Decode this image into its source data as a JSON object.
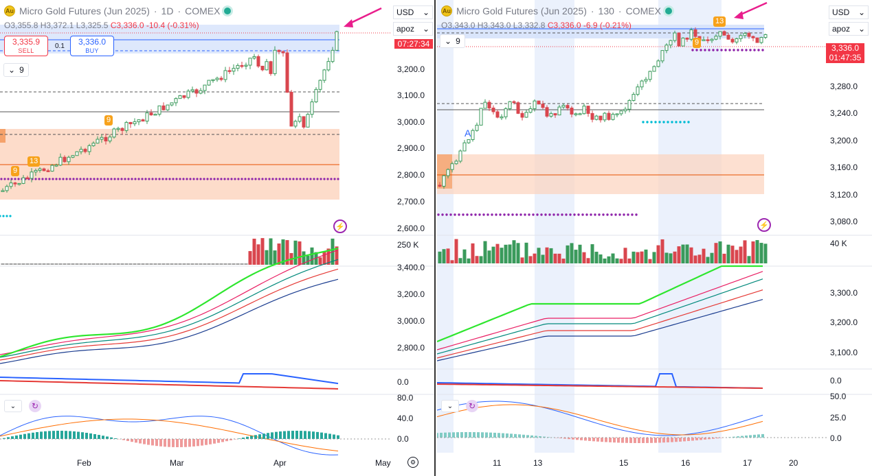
{
  "left": {
    "title": "Micro Gold Futures (Jun 2025)",
    "interval": "1D",
    "exchange": "COMEX",
    "ohlc": {
      "o": "O3,355.8",
      "h": "H3,372.1",
      "l": "L3,325.5",
      "c": "C3,336.0",
      "chg": "-10.4 (-0.31%)"
    },
    "sell_price": "3,335.9",
    "sell_label": "SELL",
    "buy_price": "3,336.0",
    "buy_label": "BUY",
    "spread": "0.1",
    "indicator_count": "9",
    "symbol_dd": "USD",
    "style_dd": "apoz",
    "countdown": "07:27:34",
    "price_axis": [
      "3,200.0",
      "3,100.0",
      "3,000.0",
      "2,900.0",
      "2,800.0",
      "2,700.0",
      "2,600.0"
    ],
    "volume_axis": [
      "250 K"
    ],
    "ma_axis": [
      "3,400.0",
      "3,200.0",
      "3,000.0",
      "2,800.0"
    ],
    "osc_axis": [
      "0.0"
    ],
    "macd_axis": [
      "80.0",
      "40.0",
      "0.0"
    ],
    "x_axis": [
      "Feb",
      "Mar",
      "Apr",
      "May"
    ],
    "seq_labels": [
      "9",
      "13",
      "9"
    ]
  },
  "right": {
    "title": "Micro Gold Futures (Jun 2025)",
    "interval": "130",
    "exchange": "COMEX",
    "ohlc": {
      "o": "O3,343.0",
      "h": "H3,343.0",
      "l": "L3,332.8",
      "c": "C3,336.0",
      "chg": "-6.9 (-0.21%)"
    },
    "indicator_count": "9",
    "symbol_dd": "USD",
    "style_dd": "apoz",
    "last_price": "3,336.0",
    "countdown": "01:47:35",
    "price_axis": [
      "3,280.0",
      "3,240.0",
      "3,200.0",
      "3,160.0",
      "3,120.0",
      "3,080.0"
    ],
    "volume_axis": [
      "40 K"
    ],
    "ma_axis": [
      "3,300.0",
      "3,200.0",
      "3,100.0"
    ],
    "osc_axis": [
      "0.0"
    ],
    "macd_axis": [
      "50.0",
      "25.0",
      "0.0"
    ],
    "x_axis": [
      "11",
      "13",
      "15",
      "16",
      "17",
      "20"
    ],
    "seq_labels": [
      "13",
      "9"
    ],
    "marker_a": "A"
  },
  "colors": {
    "up": "#3a9a5b",
    "down": "#d9464e",
    "zone": "#fcd3bd",
    "blue_zone": "#d6e2fb",
    "purple": "#8e24aa",
    "cyan": "#00bcd4",
    "arrow": "#e91e8c"
  },
  "icons": [
    "gold-logo-icon",
    "settings-gear-icon",
    "lightning-alert-icon",
    "cycle-icon",
    "chevron-down-icon"
  ]
}
